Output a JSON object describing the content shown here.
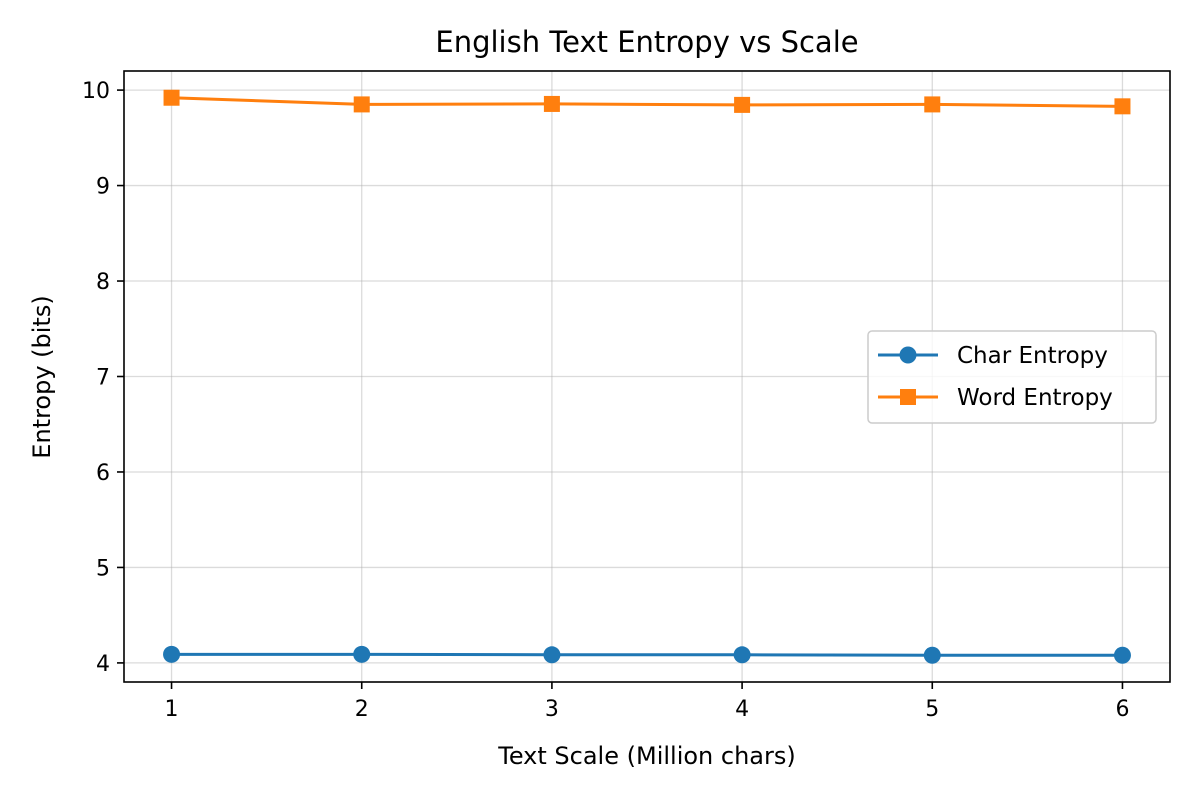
{
  "chart_data": {
    "type": "line",
    "title": "English Text Entropy vs Scale",
    "xlabel": "Text Scale (Million chars)",
    "ylabel": "Entropy (bits)",
    "x": [
      1,
      2,
      3,
      4,
      5,
      6
    ],
    "xlim": [
      0.75,
      6.25
    ],
    "ylim": [
      3.8,
      10.2
    ],
    "xticks": [
      "1",
      "2",
      "3",
      "4",
      "5",
      "6"
    ],
    "yticks": [
      "4",
      "5",
      "6",
      "7",
      "8",
      "9",
      "10"
    ],
    "grid": true,
    "legend_position": "center-right",
    "series": [
      {
        "name": "Char Entropy",
        "color": "#1f77b4",
        "marker": "circle",
        "values": [
          4.09,
          4.09,
          4.085,
          4.085,
          4.08,
          4.08
        ]
      },
      {
        "name": "Word Entropy",
        "color": "#ff7f0e",
        "marker": "square",
        "values": [
          9.92,
          9.85,
          9.855,
          9.845,
          9.85,
          9.83
        ]
      }
    ]
  }
}
